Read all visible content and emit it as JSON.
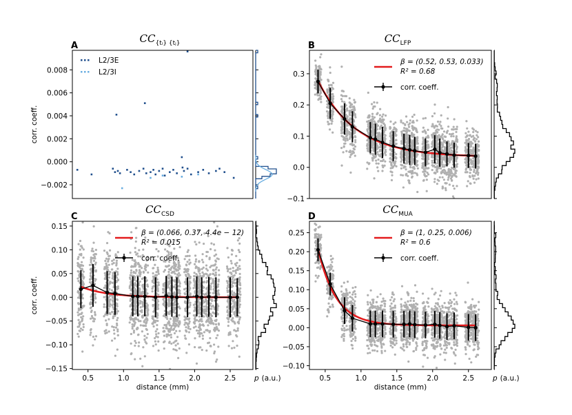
{
  "panels": [
    {
      "letter": "A",
      "title": "CC",
      "title_sub": "{tᵢ} {tⱼ}",
      "type": "scatter",
      "ylabel": "corr. coeff.",
      "xlabel": "",
      "xlim": [
        0.28,
        2.82
      ],
      "ylim": [
        -0.0032,
        0.0097
      ],
      "xticks": [],
      "yticks": [
        -0.002,
        0.0,
        0.002,
        0.004,
        0.006,
        0.008
      ],
      "ytick_labels": [
        "−0.002",
        "0.000",
        "0.002",
        "0.004",
        "0.006",
        "0.008"
      ],
      "legend": [
        {
          "label": "L2/3E",
          "color": "#1f4e8c"
        },
        {
          "label": "L2/3I",
          "color": "#6aaee0"
        }
      ],
      "series": [
        {
          "name": "L2/3E",
          "color": "#1f4e8c",
          "x": [
            0.35,
            0.55,
            0.85,
            0.88,
            0.92,
            0.95,
            1.05,
            1.1,
            1.15,
            1.22,
            1.28,
            1.32,
            1.38,
            1.42,
            1.45,
            1.5,
            1.55,
            1.58,
            1.65,
            1.7,
            1.75,
            1.82,
            1.85,
            1.9,
            1.95,
            2.05,
            2.12,
            2.2,
            2.3,
            2.35,
            2.42,
            2.55,
            0.9,
            1.3,
            1.83,
            1.9
          ],
          "y": [
            -0.0007,
            -0.0011,
            -0.0006,
            -0.0009,
            -0.0008,
            -0.001,
            -0.0007,
            -0.0009,
            -0.0011,
            -0.0008,
            -0.0006,
            -0.001,
            -0.0009,
            -0.0007,
            -0.0011,
            -0.0008,
            -0.0006,
            -0.0012,
            -0.0009,
            -0.0007,
            -0.001,
            0.0004,
            -0.0008,
            -0.0006,
            -0.0011,
            -0.0009,
            -0.0007,
            -0.001,
            -0.0008,
            -0.0006,
            -0.0009,
            -0.0014,
            0.0041,
            0.0051,
            -0.0005,
            0.0096
          ]
        },
        {
          "name": "L2/3I",
          "color": "#6aaee0",
          "x": [
            0.98,
            1.38,
            1.55,
            1.82,
            2.05
          ],
          "y": [
            -0.0023,
            -0.0014,
            -0.0012,
            -0.0013,
            -0.0011
          ]
        }
      ],
      "marginal": "blue"
    },
    {
      "letter": "B",
      "title": "CC",
      "title_sub": "LFP",
      "type": "fit",
      "ylabel": "",
      "xlabel": "",
      "xlim": [
        0.28,
        2.82
      ],
      "ylim": [
        -0.1,
        0.375
      ],
      "xticks": [],
      "yticks": [
        -0.1,
        0.0,
        0.1,
        0.2,
        0.3
      ],
      "ytick_labels": [
        "−0.1",
        "0.0",
        "0.1",
        "0.2",
        "0.3"
      ],
      "fit_label": "β = (0.52, 0.53, 0.033)",
      "r2_label": "R² = 0.68",
      "coeff_label": "corr. coeff.",
      "beta": [
        0.52,
        0.53,
        0.033
      ],
      "x": [
        0.4,
        0.57,
        0.77,
        0.88,
        1.13,
        1.2,
        1.3,
        1.45,
        1.6,
        1.68,
        1.75,
        1.9,
        2.03,
        2.1,
        2.2,
        2.3,
        2.5,
        2.6
      ],
      "y": [
        0.275,
        0.205,
        0.155,
        0.13,
        0.095,
        0.09,
        0.08,
        0.068,
        0.06,
        0.056,
        0.053,
        0.048,
        0.058,
        0.047,
        0.043,
        0.039,
        0.038,
        0.036
      ],
      "err": [
        0.038,
        0.05,
        0.05,
        0.05,
        0.05,
        0.05,
        0.05,
        0.048,
        0.048,
        0.048,
        0.045,
        0.045,
        0.045,
        0.045,
        0.04,
        0.04,
        0.04,
        0.04
      ],
      "gray_spread": [
        0.06,
        0.07,
        0.08,
        0.08,
        0.08,
        0.08,
        0.08,
        0.08,
        0.08,
        0.08,
        0.08,
        0.08,
        0.08,
        0.08,
        0.08,
        0.08,
        0.07,
        0.07
      ]
    },
    {
      "letter": "C",
      "title": "CC",
      "title_sub": "CSD",
      "type": "fit",
      "ylabel": "corr. coeff.",
      "xlabel": "distance (mm)",
      "xlim": [
        0.28,
        2.82
      ],
      "ylim": [
        -0.152,
        0.16
      ],
      "xticks": [
        0.5,
        1.0,
        1.5,
        2.0,
        2.5
      ],
      "xtick_labels": [
        "0.5",
        "1.0",
        "1.5",
        "2.0",
        "2.5"
      ],
      "yticks": [
        -0.15,
        -0.1,
        -0.05,
        0.0,
        0.05,
        0.1,
        0.15
      ],
      "ytick_labels": [
        "−0.15",
        "−0.10",
        "−0.05",
        "0.00",
        "0.05",
        "0.10",
        "0.15"
      ],
      "fit_label": "β = (0.066, 0.37, 4.4e − 12)",
      "r2_label": "R² = 0.015",
      "coeff_label": "corr. coeff.",
      "beta": [
        0.066,
        0.37,
        0.0
      ],
      "x": [
        0.4,
        0.57,
        0.77,
        0.88,
        1.13,
        1.2,
        1.3,
        1.45,
        1.6,
        1.68,
        1.75,
        1.9,
        2.03,
        2.1,
        2.2,
        2.3,
        2.5,
        2.6
      ],
      "y": [
        0.017,
        0.025,
        0.01,
        0.008,
        0.002,
        0.002,
        0.002,
        0.0,
        0.003,
        0.001,
        0.0,
        0.0,
        0.002,
        0.0,
        0.001,
        0.0,
        0.0,
        0.0
      ],
      "err": [
        0.04,
        0.045,
        0.045,
        0.045,
        0.042,
        0.042,
        0.042,
        0.042,
        0.042,
        0.042,
        0.042,
        0.042,
        0.042,
        0.042,
        0.042,
        0.042,
        0.042,
        0.04
      ],
      "gray_spread": [
        0.09,
        0.09,
        0.09,
        0.09,
        0.09,
        0.09,
        0.09,
        0.09,
        0.09,
        0.09,
        0.09,
        0.09,
        0.09,
        0.09,
        0.09,
        0.09,
        0.08,
        0.08
      ]
    },
    {
      "letter": "D",
      "title": "CC",
      "title_sub": "MUA",
      "type": "fit",
      "ylabel": "",
      "xlabel": "distance (mm)",
      "xlim": [
        0.28,
        2.82
      ],
      "ylim": [
        -0.11,
        0.28
      ],
      "xticks": [
        0.5,
        1.0,
        1.5,
        2.0,
        2.5
      ],
      "xtick_labels": [
        "0.5",
        "1.0",
        "1.5",
        "2.0",
        "2.5"
      ],
      "yticks": [
        -0.1,
        -0.05,
        0.0,
        0.05,
        0.1,
        0.15,
        0.2,
        0.25
      ],
      "ytick_labels": [
        "−0.10",
        "−0.05",
        "0.00",
        "0.05",
        "0.10",
        "0.15",
        "0.20",
        "0.25"
      ],
      "fit_label": "β = (1, 0.25, 0.006)",
      "r2_label": "R² = 0.6",
      "coeff_label": "corr. coeff.",
      "beta": [
        1.0,
        0.25,
        0.006
      ],
      "x": [
        0.4,
        0.57,
        0.77,
        0.88,
        1.13,
        1.2,
        1.3,
        1.45,
        1.6,
        1.68,
        1.75,
        1.9,
        2.03,
        2.1,
        2.2,
        2.3,
        2.5,
        2.6
      ],
      "y": [
        0.205,
        0.115,
        0.045,
        0.025,
        0.01,
        0.01,
        0.01,
        0.009,
        0.009,
        0.01,
        0.008,
        0.007,
        0.009,
        0.006,
        0.003,
        0.005,
        0.001,
        0.0
      ],
      "err": [
        0.03,
        0.03,
        0.035,
        0.035,
        0.035,
        0.035,
        0.035,
        0.035,
        0.035,
        0.035,
        0.035,
        0.035,
        0.035,
        0.035,
        0.035,
        0.035,
        0.035,
        0.035
      ],
      "gray_spread": [
        0.05,
        0.06,
        0.06,
        0.06,
        0.06,
        0.06,
        0.06,
        0.06,
        0.06,
        0.06,
        0.06,
        0.06,
        0.06,
        0.06,
        0.06,
        0.06,
        0.06,
        0.06
      ]
    }
  ],
  "p_label": "p",
  "p_unit": "(a.u.)",
  "colors": {
    "fit": "#e31a1c",
    "gray": "#b0b0b0",
    "black": "#000000"
  }
}
